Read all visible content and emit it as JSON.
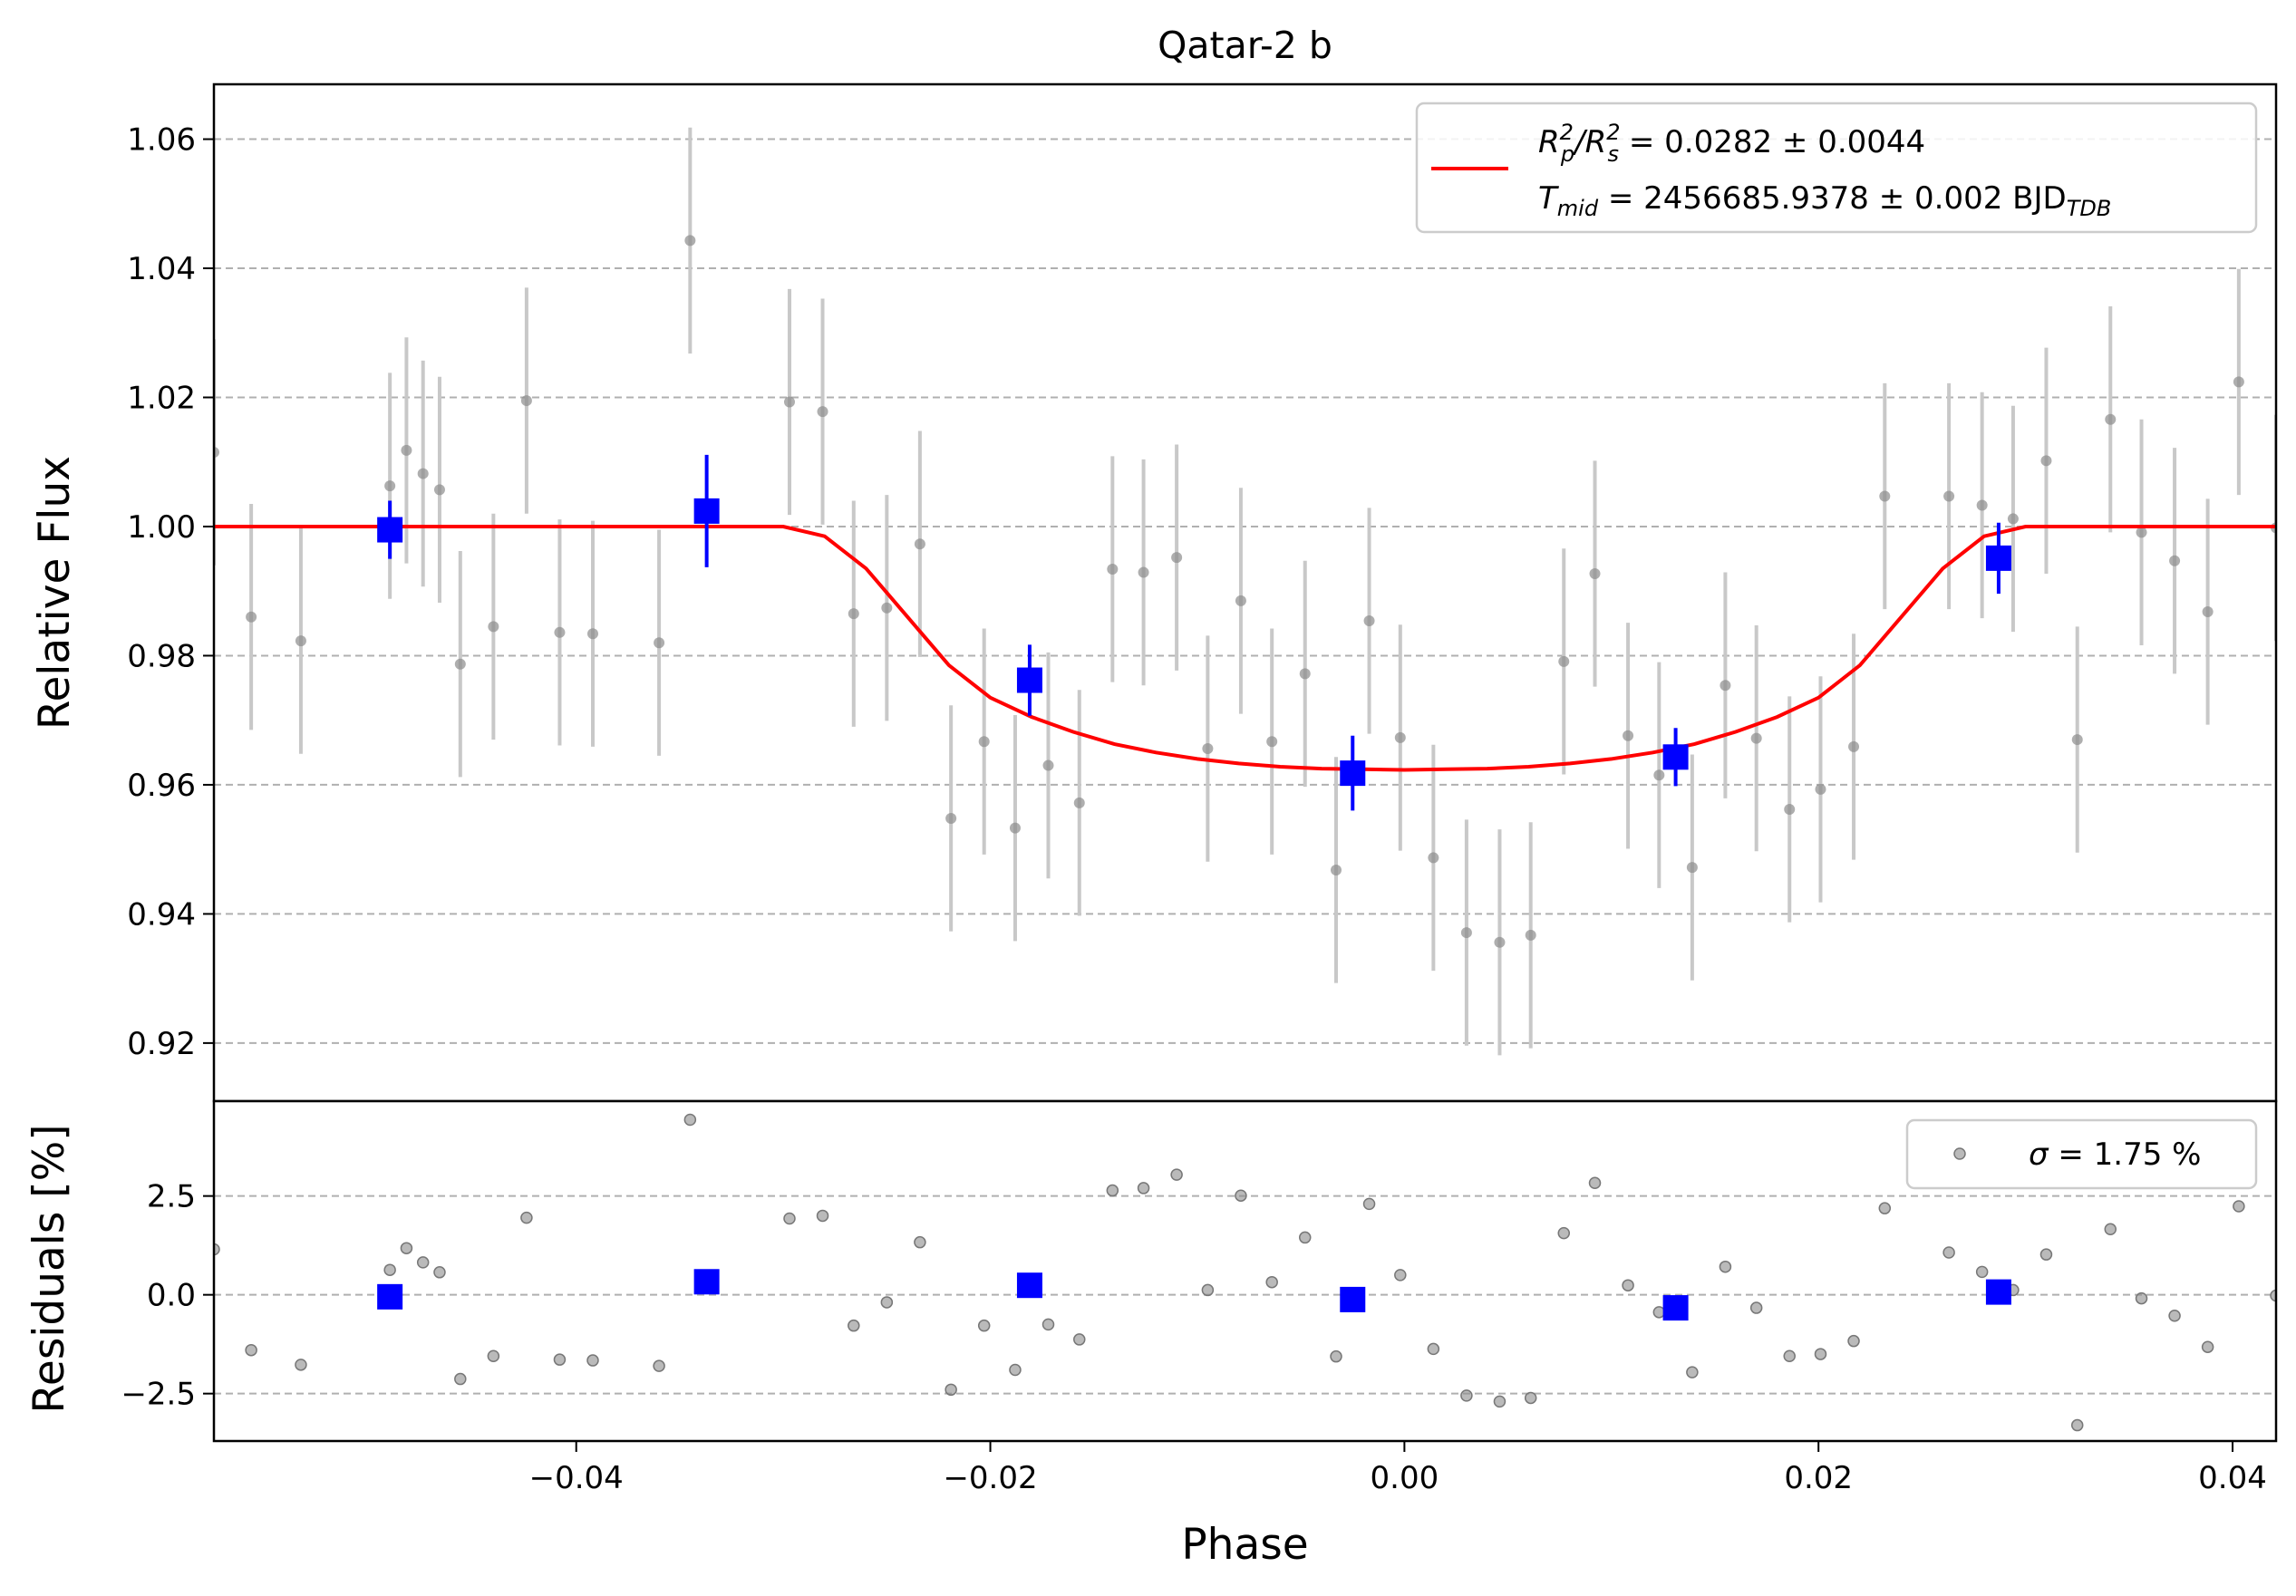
{
  "chart_data": [
    {
      "type": "scatter",
      "panel": "light-curve",
      "title": "Qatar-2 b",
      "xlabel": "",
      "ylabel": "Relative Flux",
      "xlim": [
        -0.0575,
        0.0421
      ],
      "ylim": [
        0.911,
        1.0685
      ],
      "yticks": [
        0.92,
        0.94,
        0.96,
        0.98,
        1.0,
        1.02,
        1.04,
        1.06
      ],
      "ytick_labels": [
        "0.92",
        "0.94",
        "0.96",
        "0.98",
        "1.00",
        "1.02",
        "1.04",
        "1.06"
      ],
      "grid": "y-dashed",
      "legend_position": "top-right",
      "legend": {
        "line1_main": "R",
        "line1_p": "p",
        "line1_sep": "/R",
        "line1_s": "s",
        "line1_sup": "2",
        "line1_value": " = 0.0282 ± 0.0044",
        "line2_main": "T",
        "line2_sub": "mid",
        "line2_value": " = 2456685.9378 ± 0.002 BJD",
        "line2_unit_sub": "TDB"
      },
      "colors": {
        "model": "#ff0000",
        "binned": "#0000ff",
        "raw": "#8c8c8c",
        "errorbar": "#c8c8c8"
      },
      "model": {
        "name": "transit model",
        "x": [
          -0.0575,
          -0.03,
          -0.028,
          -0.026,
          -0.024,
          -0.022,
          -0.02,
          -0.018,
          -0.016,
          -0.014,
          -0.012,
          -0.01,
          -0.008,
          -0.006,
          -0.004,
          -0.002,
          0.0,
          0.002,
          0.004,
          0.006,
          0.008,
          0.01,
          0.012,
          0.014,
          0.016,
          0.018,
          0.02,
          0.022,
          0.024,
          0.026,
          0.028,
          0.03,
          0.0421
        ],
        "y": [
          1.0,
          1.0,
          0.9985,
          0.9935,
          0.986,
          0.9785,
          0.9735,
          0.9705,
          0.9682,
          0.9663,
          0.965,
          0.964,
          0.9633,
          0.9628,
          0.9625,
          0.9624,
          0.9623,
          0.9624,
          0.9625,
          0.9628,
          0.9633,
          0.964,
          0.965,
          0.9663,
          0.9682,
          0.9705,
          0.9735,
          0.9785,
          0.986,
          0.9935,
          0.9985,
          1.0,
          1.0
        ]
      },
      "raw_points": {
        "x": [
          -0.0575,
          -0.0557,
          -0.0533,
          -0.049,
          -0.0482,
          -0.0474,
          -0.0466,
          -0.0456,
          -0.044,
          -0.0424,
          -0.0408,
          -0.0392,
          -0.036,
          -0.0345,
          -0.0297,
          -0.0281,
          -0.0266,
          -0.025,
          -0.0234,
          -0.0219,
          -0.0203,
          -0.0188,
          -0.0172,
          -0.0157,
          -0.0141,
          -0.0126,
          -0.011,
          -0.0095,
          -0.0079,
          -0.0064,
          -0.0048,
          -0.0033,
          -0.0017,
          -0.0002,
          0.0014,
          0.003,
          0.0046,
          0.0061,
          0.0077,
          0.0092,
          0.0108,
          0.0123,
          0.0139,
          0.0155,
          0.017,
          0.0186,
          0.0201,
          0.0217,
          0.0232,
          0.0263,
          0.0279,
          0.0294,
          0.031,
          0.0325,
          0.0341,
          0.0356,
          0.0372,
          0.0388,
          0.0403,
          0.0421
        ],
        "y": [
          1.0115,
          0.986,
          0.9823,
          1.0063,
          1.0118,
          1.0082,
          1.0057,
          0.9787,
          0.9845,
          1.0195,
          0.9836,
          0.9834,
          0.982,
          1.0443,
          1.0193,
          1.0178,
          0.9865,
          0.9874,
          0.9973,
          0.9548,
          0.9667,
          0.9533,
          0.963,
          0.9572,
          0.9934,
          0.9929,
          0.9952,
          0.9656,
          0.9885,
          0.9667,
          0.9772,
          0.9468,
          0.9854,
          0.9673,
          0.9487,
          0.9371,
          0.9356,
          0.9367,
          0.9791,
          0.9927,
          0.9676,
          0.9615,
          0.9472,
          0.9754,
          0.9672,
          0.9562,
          0.9593,
          0.9659,
          1.0047,
          1.0047,
          1.0033,
          1.0012,
          1.0102,
          0.967,
          1.0166,
          0.9991,
          0.9947,
          0.9868,
          1.0224,
          0.9998
        ],
        "err": 0.0175
      },
      "binned_points": {
        "x": [
          -0.049,
          -0.0337,
          -0.0181,
          -0.0025,
          0.0131,
          0.0287
        ],
        "y": [
          0.9995,
          1.0024,
          0.9762,
          0.9618,
          0.9643,
          0.9951
        ],
        "err": [
          0.0045,
          0.0087,
          0.0055,
          0.0058,
          0.0045,
          0.0055
        ]
      }
    },
    {
      "type": "scatter",
      "panel": "residuals",
      "xlabel": "Phase",
      "ylabel": "Residuals [%]",
      "xlim": [
        -0.0575,
        0.0421
      ],
      "ylim": [
        -3.7,
        4.9
      ],
      "xticks": [
        -0.04,
        -0.02,
        0.0,
        0.02,
        0.04
      ],
      "xtick_labels": [
        "−0.04",
        "−0.02",
        "0.00",
        "0.02",
        "0.04"
      ],
      "yticks": [
        -2.5,
        0.0,
        2.5
      ],
      "ytick_labels": [
        "−2.5",
        "0.0",
        "2.5"
      ],
      "grid": "y-dashed",
      "legend_position": "top-right",
      "legend": {
        "symbol": "σ",
        "value": " = 1.75 %"
      },
      "raw_residuals": {
        "x": [
          -0.0575,
          -0.0557,
          -0.0533,
          -0.049,
          -0.0482,
          -0.0474,
          -0.0466,
          -0.0456,
          -0.044,
          -0.0424,
          -0.0408,
          -0.0392,
          -0.036,
          -0.0345,
          -0.0297,
          -0.0281,
          -0.0266,
          -0.025,
          -0.0234,
          -0.0219,
          -0.0203,
          -0.0188,
          -0.0172,
          -0.0157,
          -0.0141,
          -0.0126,
          -0.011,
          -0.0095,
          -0.0079,
          -0.0064,
          -0.0048,
          -0.0033,
          -0.0017,
          -0.0002,
          0.0014,
          0.003,
          0.0046,
          0.0061,
          0.0077,
          0.0092,
          0.0108,
          0.0123,
          0.0139,
          0.0155,
          0.017,
          0.0186,
          0.0201,
          0.0217,
          0.0232,
          0.0263,
          0.0279,
          0.0294,
          0.031,
          0.0325,
          0.0341,
          0.0356,
          0.0372,
          0.0388,
          0.0403,
          0.0421
        ],
        "y": [
          1.15,
          -1.4,
          -1.77,
          0.63,
          1.18,
          0.82,
          0.57,
          -2.13,
          -1.55,
          1.95,
          -1.64,
          -1.66,
          -1.8,
          4.43,
          1.93,
          2.0,
          -0.78,
          -0.19,
          1.33,
          -2.4,
          -0.78,
          -1.9,
          -0.75,
          -1.13,
          2.64,
          2.7,
          3.04,
          0.12,
          2.51,
          0.32,
          1.45,
          -1.56,
          2.3,
          0.5,
          -1.37,
          -2.55,
          -2.7,
          -2.61,
          1.56,
          2.83,
          0.24,
          -0.44,
          -1.96,
          0.71,
          -0.33,
          -1.55,
          -1.5,
          -1.17,
          2.19,
          1.07,
          0.58,
          0.12,
          1.02,
          -3.3,
          1.66,
          -0.09,
          -0.53,
          -1.32,
          2.24,
          -0.02
        ]
      },
      "binned_residuals": {
        "x": [
          -0.049,
          -0.0337,
          -0.0181,
          -0.0025,
          0.0131,
          0.0287
        ],
        "y": [
          -0.05,
          0.33,
          0.24,
          -0.12,
          -0.33,
          0.07
        ]
      }
    }
  ]
}
